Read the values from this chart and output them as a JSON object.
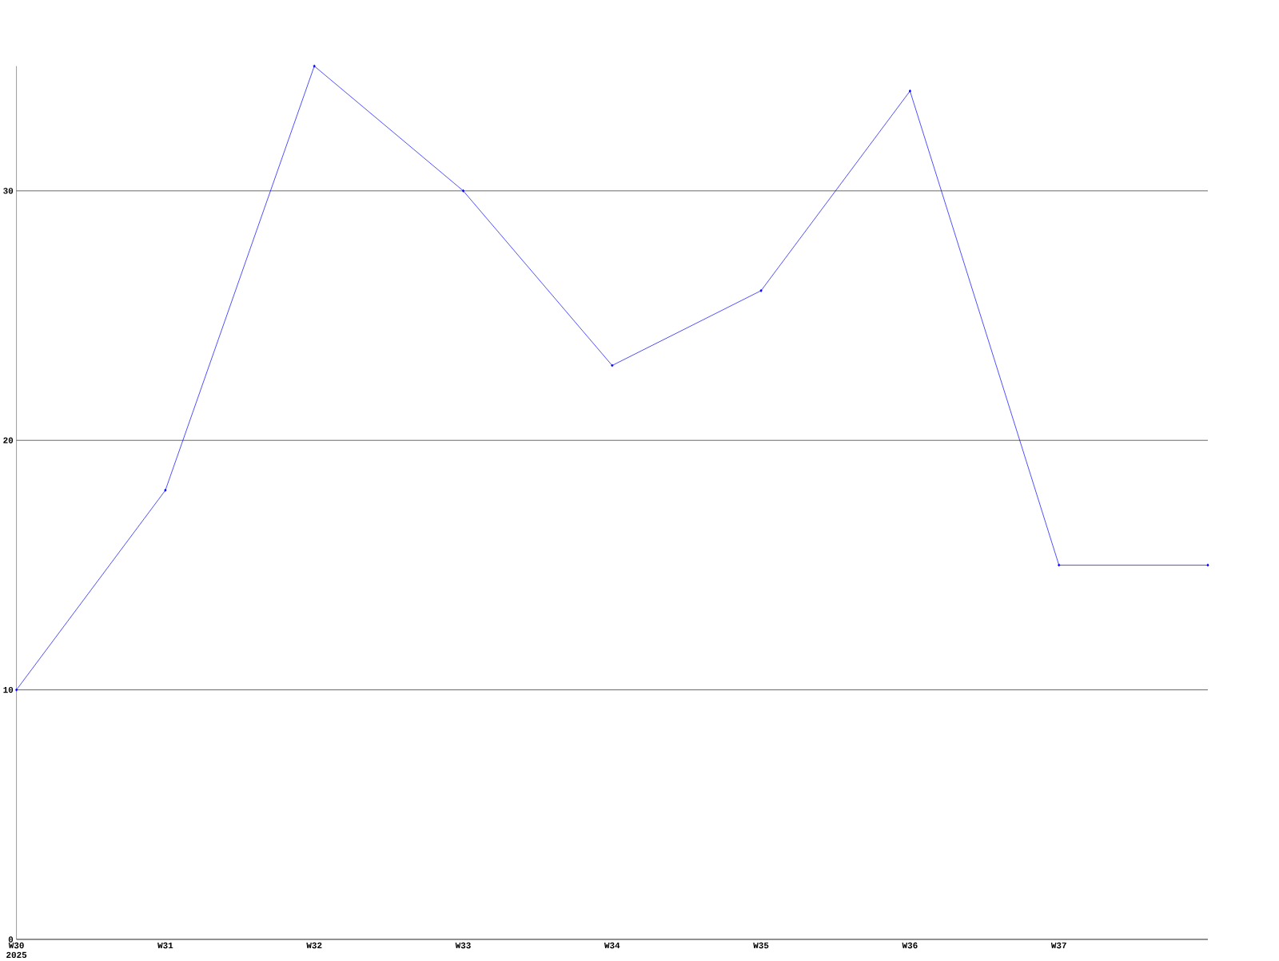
{
  "chart_data": {
    "type": "line",
    "categories": [
      "W30 2025",
      "W31",
      "W32",
      "W33",
      "W34",
      "W35",
      "W36",
      "W37",
      null
    ],
    "series": [
      {
        "color": "#0000ff",
        "values": [
          10,
          18,
          35,
          30,
          23,
          26,
          34,
          15,
          15
        ]
      }
    ],
    "ylim": [
      0,
      35
    ],
    "yticks": [
      0,
      10,
      20,
      30
    ],
    "grid": "y",
    "marker": "diamond",
    "line_style": "solid"
  }
}
